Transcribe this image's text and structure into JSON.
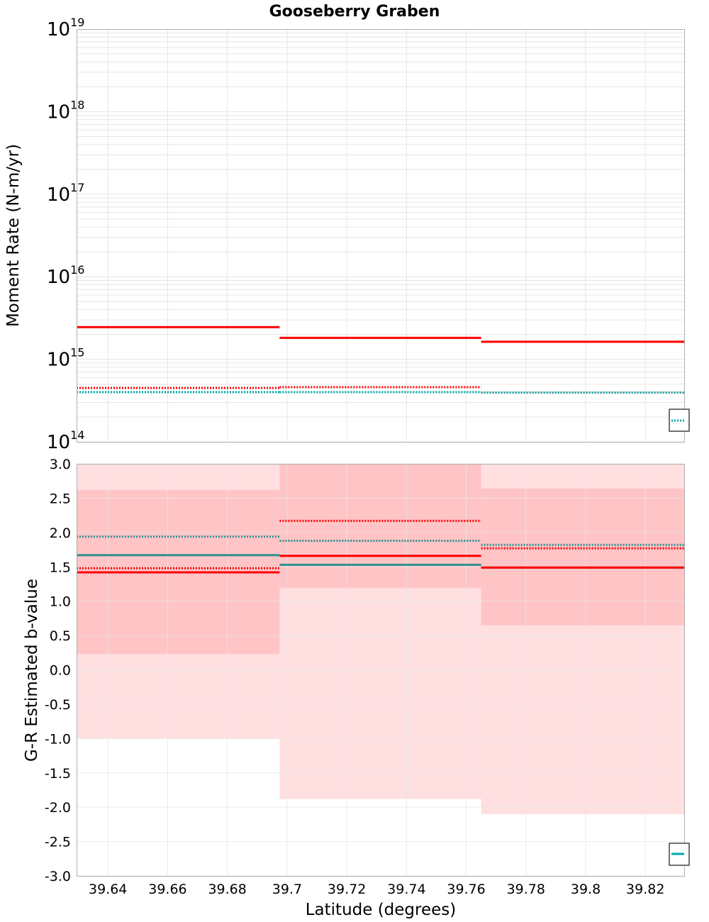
{
  "title": "Gooseberry Graben",
  "colors": {
    "red": "#ff0000",
    "cyan": "#00aaaa",
    "teal": "#2f8f8f",
    "band_outer": "#ffdfe0",
    "band_inner": "#ffc4c6",
    "grid": "#e6e6e6",
    "frame": "#b0b0b0"
  },
  "chart_data": [
    {
      "type": "line",
      "name": "moment-rate-panel",
      "xlabel": "Latitude (degrees)",
      "ylabel": "Moment Rate (N-m/yr)",
      "yscale": "log",
      "xlim": [
        39.6295,
        39.833
      ],
      "ylim": [
        100000000000000.0,
        1e+19
      ],
      "y_tick_labels": [
        {
          "base": "10",
          "exp": "14"
        },
        {
          "base": "10",
          "exp": "15"
        },
        {
          "base": "10",
          "exp": "16"
        },
        {
          "base": "10",
          "exp": "17"
        },
        {
          "base": "10",
          "exp": "18"
        },
        {
          "base": "10",
          "exp": "19"
        }
      ],
      "grid": true,
      "legend": "bottom-right",
      "series": [
        {
          "style": "solid",
          "color": "#ff0000",
          "width": 3,
          "segments": [
            [
              39.6295,
              39.6975,
              2450000000000000.0
            ],
            [
              39.6975,
              39.765,
              1820000000000000.0
            ],
            [
              39.765,
              39.833,
              1630000000000000.0
            ]
          ]
        },
        {
          "style": "dotted",
          "color": "#ff0000",
          "width": 3,
          "segments": [
            [
              39.6295,
              39.6975,
              450000000000000.0
            ],
            [
              39.6975,
              39.765,
              460000000000000.0
            ],
            [
              39.765,
              39.833,
              395000000000000.0
            ]
          ]
        },
        {
          "style": "dotted",
          "color": "#00aaaa",
          "width": 3,
          "segments": [
            [
              39.6295,
              39.6975,
              400000000000000.0
            ],
            [
              39.6975,
              39.765,
              400000000000000.0
            ],
            [
              39.765,
              39.833,
              395000000000000.0
            ]
          ]
        }
      ]
    },
    {
      "type": "line",
      "name": "b-value-panel",
      "xlabel": "Latitude (degrees)",
      "ylabel": "G-R Estimated b-value",
      "xlim": [
        39.6295,
        39.833
      ],
      "ylim": [
        -3.0,
        3.0
      ],
      "x_ticks": [
        39.64,
        39.66,
        39.68,
        39.7,
        39.72,
        39.74,
        39.76,
        39.78,
        39.8,
        39.82
      ],
      "x_tick_labels": [
        "39.64",
        "39.66",
        "39.68",
        "39.7",
        "39.72",
        "39.74",
        "39.76",
        "39.78",
        "39.8",
        "39.82"
      ],
      "y_ticks": [
        3.0,
        2.5,
        2.0,
        1.5,
        1.0,
        0.5,
        0.0,
        -0.5,
        -1.0,
        -1.5,
        -2.0,
        -2.5,
        -3.0
      ],
      "y_tick_labels": [
        "3.0",
        "2.5",
        "2.0",
        "1.5",
        "1.0",
        "0.5",
        "0.0",
        "-0.5",
        "-1.0",
        "-1.5",
        "-2.0",
        "-2.5",
        "-3.0"
      ],
      "grid": true,
      "legend": "bottom-right",
      "bands": [
        {
          "level": "outer",
          "color": "#ffdfe0",
          "segments": [
            [
              39.6295,
              39.6975,
              -1.0,
              3.0
            ],
            [
              39.6975,
              39.765,
              -1.88,
              3.0
            ],
            [
              39.765,
              39.833,
              -2.1,
              3.0
            ]
          ]
        },
        {
          "level": "inner",
          "color": "#ffc4c6",
          "segments": [
            [
              39.6295,
              39.6975,
              0.23,
              2.62
            ],
            [
              39.6975,
              39.765,
              1.19,
              3.0
            ],
            [
              39.765,
              39.833,
              0.65,
              2.64
            ]
          ]
        }
      ],
      "series": [
        {
          "style": "dotted",
          "color": "#ff0000",
          "width": 3,
          "segments": [
            [
              39.6295,
              39.6975,
              1.48
            ],
            [
              39.6975,
              39.765,
              2.17
            ],
            [
              39.765,
              39.833,
              1.77
            ]
          ]
        },
        {
          "style": "dotted",
          "color": "#2f8f8f",
          "width": 3,
          "segments": [
            [
              39.6295,
              39.6975,
              1.94
            ],
            [
              39.6975,
              39.765,
              1.88
            ],
            [
              39.765,
              39.833,
              1.82
            ]
          ]
        },
        {
          "style": "solid",
          "color": "#2f8f8f",
          "width": 3,
          "segments": [
            [
              39.6295,
              39.6975,
              1.67
            ],
            [
              39.6975,
              39.765,
              1.53
            ],
            [
              39.765,
              39.833,
              1.49
            ]
          ]
        },
        {
          "style": "solid",
          "color": "#ff0000",
          "width": 3,
          "segments": [
            [
              39.6295,
              39.6975,
              1.42
            ],
            [
              39.6975,
              39.765,
              1.66
            ],
            [
              39.765,
              39.833,
              1.49
            ]
          ]
        }
      ]
    }
  ]
}
